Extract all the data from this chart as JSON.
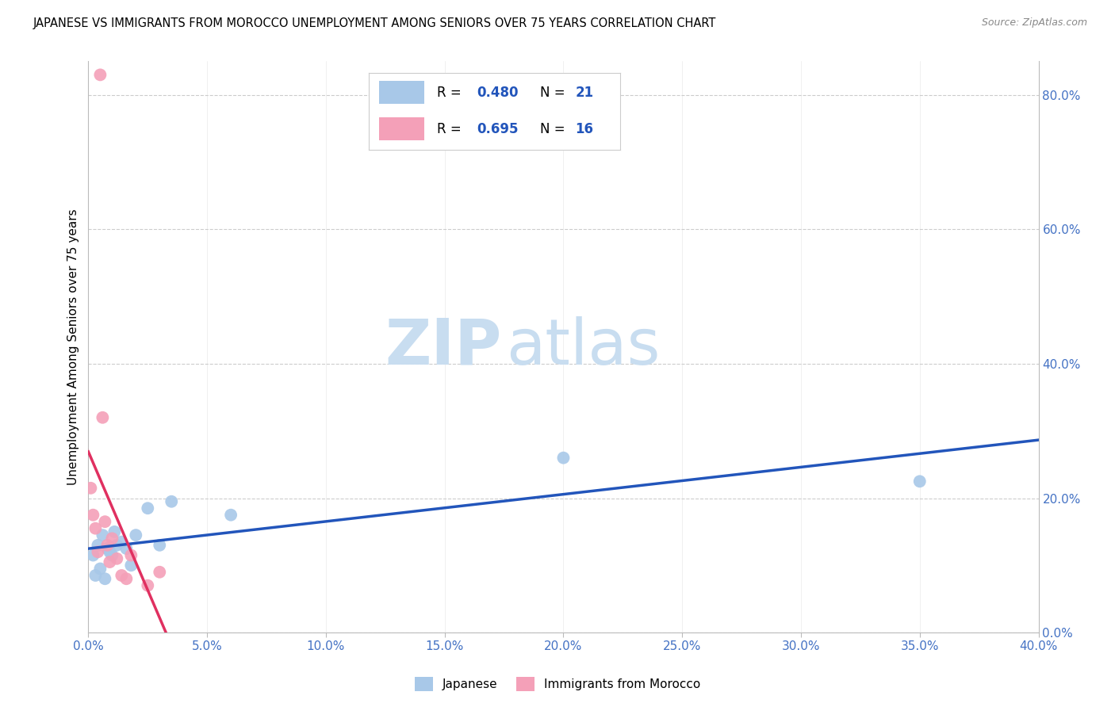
{
  "title": "JAPANESE VS IMMIGRANTS FROM MOROCCO UNEMPLOYMENT AMONG SENIORS OVER 75 YEARS CORRELATION CHART",
  "source": "Source: ZipAtlas.com",
  "ylabel": "Unemployment Among Seniors over 75 years",
  "tick_color": "#4472c4",
  "xlim": [
    0.0,
    0.4
  ],
  "ylim": [
    0.0,
    0.85
  ],
  "xticks": [
    0.0,
    0.05,
    0.1,
    0.15,
    0.2,
    0.25,
    0.3,
    0.35,
    0.4
  ],
  "yticks_right": [
    0.0,
    0.2,
    0.4,
    0.6,
    0.8
  ],
  "watermark_zip": "ZIP",
  "watermark_atlas": "atlas",
  "blue_R": 0.48,
  "blue_N": 21,
  "pink_R": 0.695,
  "pink_N": 16,
  "blue_color": "#a8c8e8",
  "pink_color": "#f4a0b8",
  "blue_line_color": "#2255bb",
  "pink_line_color": "#e03060",
  "legend_label_blue": "Japanese",
  "legend_label_pink": "Immigrants from Morocco",
  "blue_x": [
    0.002,
    0.003,
    0.004,
    0.005,
    0.006,
    0.007,
    0.008,
    0.009,
    0.01,
    0.011,
    0.012,
    0.014,
    0.016,
    0.018,
    0.02,
    0.025,
    0.03,
    0.035,
    0.06,
    0.2,
    0.35
  ],
  "blue_y": [
    0.115,
    0.085,
    0.13,
    0.095,
    0.145,
    0.08,
    0.125,
    0.12,
    0.115,
    0.15,
    0.13,
    0.135,
    0.125,
    0.1,
    0.145,
    0.185,
    0.13,
    0.195,
    0.175,
    0.26,
    0.225
  ],
  "pink_x": [
    0.001,
    0.002,
    0.003,
    0.004,
    0.005,
    0.006,
    0.007,
    0.008,
    0.009,
    0.01,
    0.012,
    0.014,
    0.016,
    0.018,
    0.025,
    0.03
  ],
  "pink_y": [
    0.215,
    0.175,
    0.155,
    0.12,
    0.83,
    0.32,
    0.165,
    0.13,
    0.105,
    0.14,
    0.11,
    0.085,
    0.08,
    0.115,
    0.07,
    0.09
  ],
  "bg_color": "#ffffff",
  "grid_color": "#cccccc"
}
